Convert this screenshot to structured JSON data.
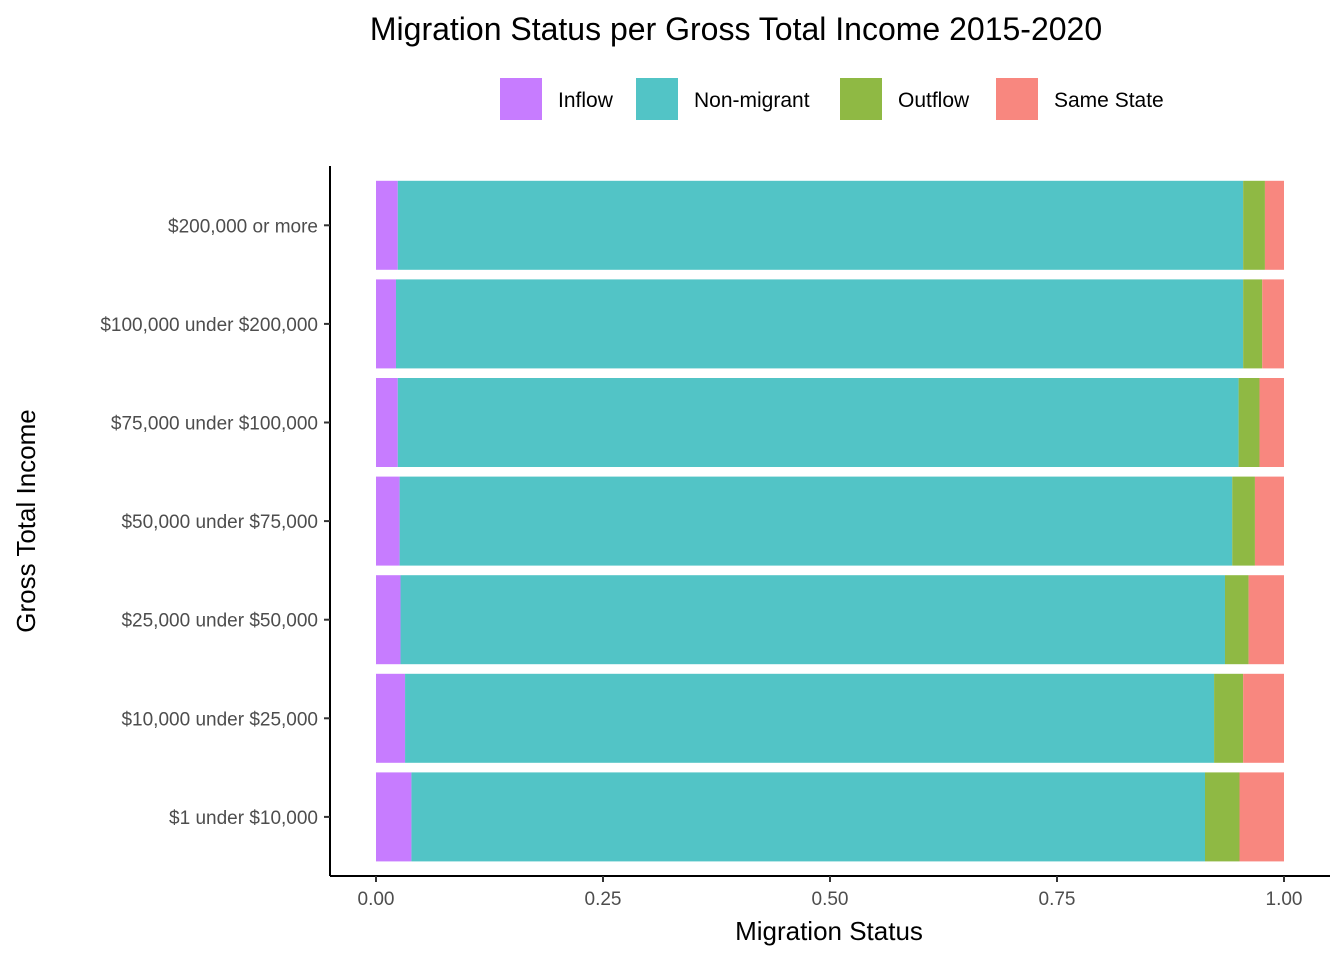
{
  "chart_data": {
    "type": "bar",
    "orientation": "horizontal",
    "stacked": true,
    "title": "Migration Status per Gross Total Income 2015-2020",
    "xlabel": "Migration Status",
    "ylabel": "Gross Total Income",
    "xlim": [
      0,
      1
    ],
    "xticks": [
      0,
      0.25,
      0.5,
      0.75,
      1
    ],
    "xtick_labels": [
      "0.00",
      "0.25",
      "0.50",
      "0.75",
      "1.00"
    ],
    "grid": false,
    "legend_position": "top",
    "categories": [
      "$1 under $10,000",
      "$10,000 under $25,000",
      "$25,000 under $50,000",
      "$50,000 under $75,000",
      "$75,000 under $100,000",
      "$100,000 under $200,000",
      "$200,000 or more"
    ],
    "series": [
      {
        "name": "Inflow",
        "color": "#C77CFF",
        "values": [
          0.039,
          0.032,
          0.027,
          0.026,
          0.024,
          0.022,
          0.024
        ]
      },
      {
        "name": "Non-migrant",
        "color": "#52C4C6",
        "values": [
          0.874,
          0.891,
          0.908,
          0.917,
          0.926,
          0.933,
          0.931
        ]
      },
      {
        "name": "Outflow",
        "color": "#8FB944",
        "values": [
          0.038,
          0.032,
          0.026,
          0.025,
          0.023,
          0.021,
          0.024
        ]
      },
      {
        "name": "Same State",
        "color": "#F8877F",
        "values": [
          0.049,
          0.045,
          0.039,
          0.032,
          0.027,
          0.024,
          0.021
        ]
      }
    ]
  }
}
